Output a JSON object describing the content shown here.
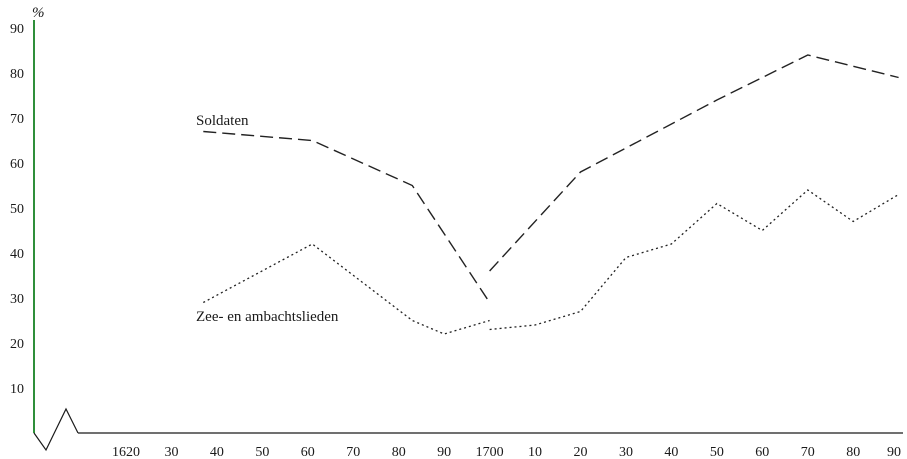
{
  "chart_data": {
    "type": "line",
    "ylabel": "%",
    "ylim": [
      0,
      90
    ],
    "xlim": [
      1612,
      1790
    ],
    "y_ticks": [
      10,
      20,
      30,
      40,
      50,
      60,
      70,
      80,
      90
    ],
    "x_ticks": [
      {
        "value": 1620,
        "label": "1620"
      },
      {
        "value": 1630,
        "label": "30"
      },
      {
        "value": 1640,
        "label": "40"
      },
      {
        "value": 1650,
        "label": "50"
      },
      {
        "value": 1660,
        "label": "60"
      },
      {
        "value": 1670,
        "label": "70"
      },
      {
        "value": 1680,
        "label": "80"
      },
      {
        "value": 1690,
        "label": "90"
      },
      {
        "value": 1700,
        "label": "1700"
      },
      {
        "value": 1710,
        "label": "10"
      },
      {
        "value": 1720,
        "label": "20"
      },
      {
        "value": 1730,
        "label": "30"
      },
      {
        "value": 1740,
        "label": "40"
      },
      {
        "value": 1750,
        "label": "50"
      },
      {
        "value": 1760,
        "label": "60"
      },
      {
        "value": 1770,
        "label": "70"
      },
      {
        "value": 1780,
        "label": "80"
      },
      {
        "value": 1790,
        "label": "90"
      }
    ],
    "series": [
      {
        "name": "Soldaten",
        "style": "dashed",
        "segments": [
          {
            "x": [
              1637,
              1661,
              1683,
              1700
            ],
            "y": [
              67,
              65,
              55,
              29
            ]
          },
          {
            "x": [
              1700,
              1720,
              1750,
              1770,
              1790
            ],
            "y": [
              36,
              58,
              74,
              84,
              79
            ]
          }
        ]
      },
      {
        "name": "Zee- en ambachtslieden",
        "style": "dotted",
        "segments": [
          {
            "x": [
              1637,
              1661,
              1683,
              1690,
              1700
            ],
            "y": [
              29,
              42,
              25,
              22,
              25
            ]
          },
          {
            "x": [
              1700,
              1710,
              1720,
              1730,
              1740,
              1750,
              1760,
              1770,
              1780,
              1790
            ],
            "y": [
              23,
              24,
              27,
              39,
              42,
              51,
              45,
              54,
              47,
              53
            ]
          }
        ]
      }
    ]
  }
}
